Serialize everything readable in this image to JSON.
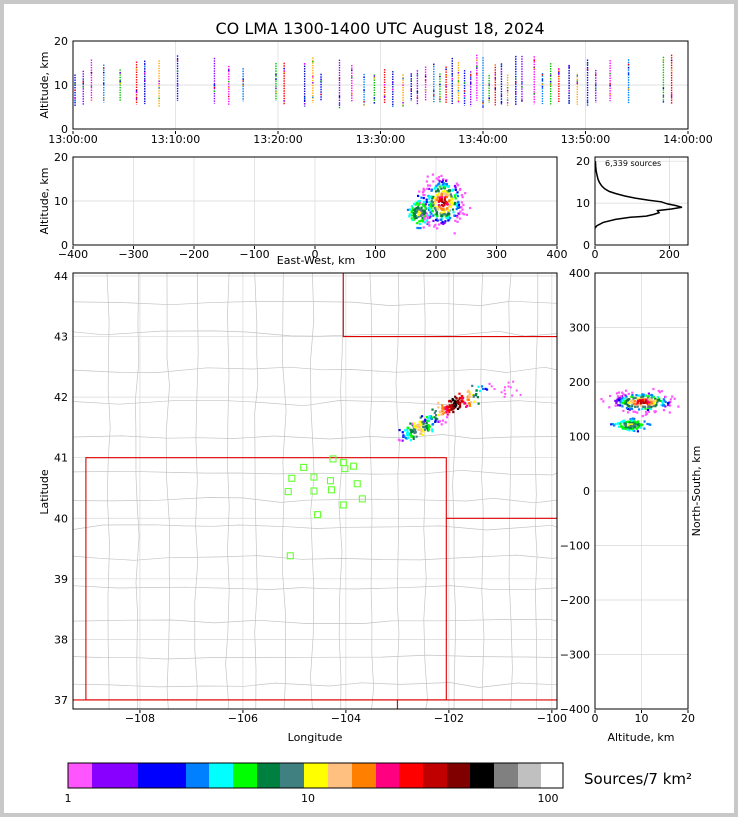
{
  "title": "CO LMA 1300-1400 UTC August 18, 2024",
  "colors": {
    "grid": "#d8d8d8",
    "county": "#c4c4c4",
    "state": "#dd0000",
    "station": "#66ff33",
    "axis": "#000000"
  },
  "chart_data": [
    {
      "name": "altitude-time",
      "type": "scatter",
      "xlabel": "",
      "ylabel": "Altitude, km",
      "xlim": [
        "13:00:00",
        "14:00:00"
      ],
      "ylim": [
        0,
        20
      ],
      "xticks": [
        "13:00:00",
        "13:10:00",
        "13:20:00",
        "13:30:00",
        "13:40:00",
        "13:50:00",
        "14:00:00"
      ],
      "yticks": [
        0,
        10,
        20
      ],
      "bursts_minutes": [
        0.2,
        1.0,
        1.8,
        3.0,
        4.6,
        6.2,
        7.0,
        8.4,
        10.2,
        13.8,
        15.2,
        16.6,
        19.8,
        20.6,
        22.6,
        23.4,
        24.2,
        26.0,
        27.2,
        28.4,
        29.4,
        30.4,
        31.2,
        32.2,
        33.0,
        33.6,
        34.4,
        35.2,
        35.8,
        36.4,
        37.0,
        37.6,
        38.2,
        38.8,
        39.4,
        40.0,
        40.6,
        41.2,
        41.8,
        42.4,
        43.2,
        43.8,
        45.0,
        45.8,
        46.6,
        47.4,
        48.4,
        49.2,
        50.2,
        51.0,
        52.4,
        54.2,
        57.6,
        58.4
      ],
      "altitude_range_km": [
        5,
        17
      ]
    },
    {
      "name": "altitude-eastwest",
      "type": "heatmap",
      "xlabel": "East-West, km",
      "ylabel": "Altitude, km",
      "xlim": [
        -400,
        400
      ],
      "ylim": [
        0,
        20
      ],
      "xticks": [
        -400,
        -300,
        -200,
        -100,
        0,
        100,
        200,
        300,
        400
      ],
      "yticks": [
        0,
        10,
        20
      ],
      "core": {
        "x_km": 210,
        "alt_km": 10
      },
      "secondary": {
        "x_km": 170,
        "alt_km": 7.5
      }
    },
    {
      "name": "altitude-histogram",
      "type": "line",
      "annotation": "6,339 sources",
      "xlim": [
        0,
        250
      ],
      "ylim": [
        0,
        21
      ],
      "xticks": [
        0,
        200
      ],
      "yticks": [
        0,
        10,
        20
      ],
      "profile": [
        [
          0,
          4
        ],
        [
          5,
          4.6
        ],
        [
          22,
          5.4
        ],
        [
          55,
          6.1
        ],
        [
          95,
          6.6
        ],
        [
          138,
          6.9
        ],
        [
          158,
          7.3
        ],
        [
          172,
          7.7
        ],
        [
          168,
          8.2
        ],
        [
          205,
          8.6
        ],
        [
          234,
          9.0
        ],
        [
          218,
          9.4
        ],
        [
          195,
          9.8
        ],
        [
          178,
          10.3
        ],
        [
          145,
          10.7
        ],
        [
          108,
          11.2
        ],
        [
          80,
          11.7
        ],
        [
          55,
          12.3
        ],
        [
          38,
          12.8
        ],
        [
          26,
          13.4
        ],
        [
          18,
          14.1
        ],
        [
          12,
          14.9
        ],
        [
          8,
          15.7
        ],
        [
          5,
          16.8
        ],
        [
          3,
          17.8
        ],
        [
          2,
          18.8
        ],
        [
          1,
          20
        ]
      ]
    },
    {
      "name": "plan-view-map",
      "type": "heatmap",
      "xlabel": "Longitude",
      "ylabel": "Latitude",
      "xlim": [
        -109.3,
        -99.9
      ],
      "ylim": [
        36.85,
        44.05
      ],
      "xticks": [
        -108,
        -106,
        -104,
        -102,
        -100
      ],
      "xtick_labels": [
        "−108",
        "−106",
        "−104",
        "−102",
        "−100"
      ],
      "yticks": [
        37,
        38,
        39,
        40,
        41,
        42,
        43,
        44
      ],
      "storm_core": {
        "lon": -101.9,
        "lat": 41.9
      },
      "storm_tail": {
        "lon": -102.6,
        "lat": 41.5
      },
      "stations": [
        [
          -104.25,
          40.98
        ],
        [
          -104.05,
          40.92
        ],
        [
          -103.85,
          40.86
        ],
        [
          -104.82,
          40.84
        ],
        [
          -104.02,
          40.82
        ],
        [
          -105.05,
          40.66
        ],
        [
          -104.62,
          40.68
        ],
        [
          -104.3,
          40.62
        ],
        [
          -103.78,
          40.57
        ],
        [
          -105.12,
          40.44
        ],
        [
          -104.62,
          40.45
        ],
        [
          -104.28,
          40.47
        ],
        [
          -103.68,
          40.32
        ],
        [
          -104.05,
          40.22
        ],
        [
          -104.55,
          40.06
        ],
        [
          -105.08,
          39.38
        ]
      ]
    },
    {
      "name": "altitude-northsouth",
      "type": "heatmap",
      "xlabel": "Altitude, km",
      "ylabel": "North-South, km",
      "xlim": [
        0,
        20
      ],
      "ylim": [
        -400,
        400
      ],
      "xticks": [
        0,
        10,
        20
      ],
      "yticks": [
        -400,
        -300,
        -200,
        -100,
        0,
        100,
        200,
        300,
        400
      ],
      "yticks_labels": [
        "−400",
        "−300",
        "−200",
        "−100",
        "0",
        "100",
        "200",
        "300",
        "400"
      ],
      "core": {
        "alt_km": 10,
        "y_km": 165
      },
      "secondary": {
        "alt_km": 7.5,
        "y_km": 123
      }
    }
  ],
  "colorbar": {
    "label": "Sources/7 km²",
    "ticks": [
      "1",
      "10",
      "100"
    ],
    "colors": [
      "#ff55ff",
      "#8800ff",
      "#0000ff",
      "#0080ff",
      "#00ffff",
      "#00ff00",
      "#008040",
      "#408080",
      "#ffff00",
      "#ffc080",
      "#ff8000",
      "#ff0080",
      "#ff0000",
      "#c00000",
      "#800000",
      "#000000",
      "#808080",
      "#c0c0c0",
      "#ffffff"
    ]
  }
}
